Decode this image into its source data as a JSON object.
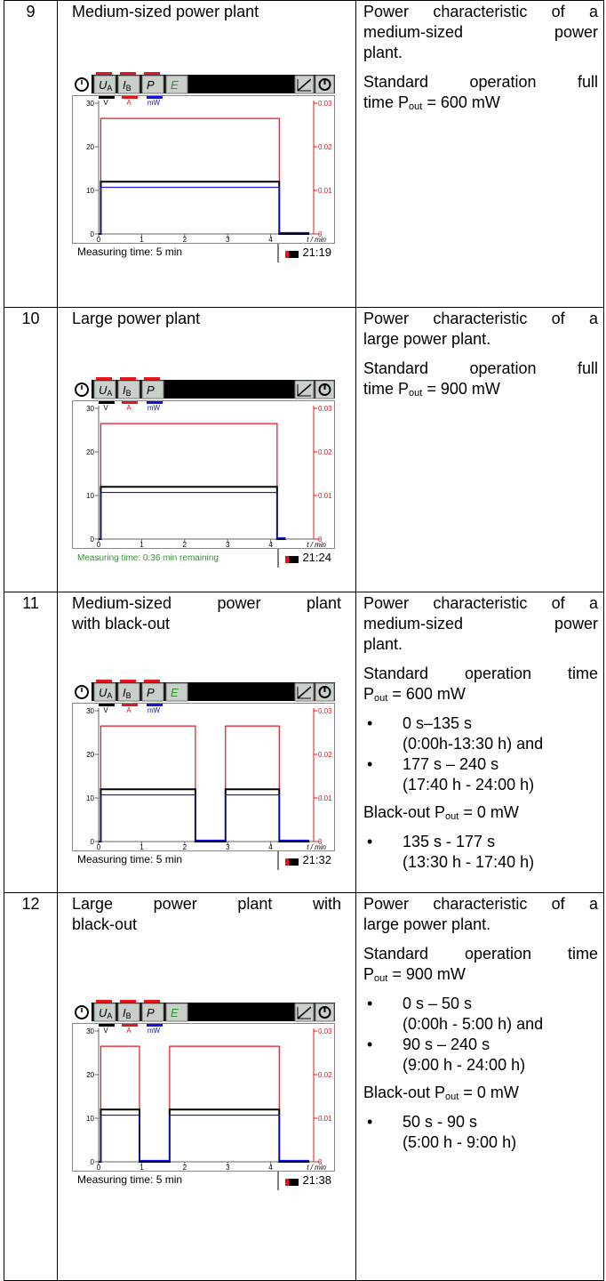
{
  "rows": [
    {
      "number": "9",
      "title": [
        [
          "Medium-sized power plant"
        ]
      ],
      "description": [
        {
          "lines": [
            "Power characteristic of a",
            "medium-sized power",
            "plant."
          ]
        },
        {
          "lines": [
            "Standard operation full",
            [
              "time P",
              {
                "sub": "out"
              },
              " = 600 mW"
            ]
          ]
        }
      ],
      "screen": {
        "channels_shown": 4,
        "status": "Measuring time: 5 min",
        "status_color": "#000000",
        "clock": "21:19",
        "x": [
          0,
          0.05,
          0.05,
          4.2,
          4.2,
          4.9
        ],
        "series": [
          {
            "color": "#e8141c",
            "axis": "y2",
            "values": [
              0,
              0,
              0.0265,
              0.0265,
              0,
              0
            ]
          },
          {
            "color": "#000000",
            "values": [
              0,
              0,
              12,
              12,
              0,
              0
            ]
          },
          {
            "color": "#1010e0",
            "values": [
              0,
              0,
              10.7,
              10.7,
              0.3,
              0.3
            ]
          }
        ]
      }
    },
    {
      "number": "10",
      "title": [
        [
          "Large power plant"
        ]
      ],
      "description": [
        {
          "lines": [
            "Power characteristic of a",
            "large power plant."
          ]
        },
        {
          "lines": [
            "Standard operation full",
            [
              "time P",
              {
                "sub": "out"
              },
              " = 900 mW"
            ]
          ]
        }
      ],
      "screen": {
        "channels_shown": 3,
        "status": "Measuring time: 0:36 min remaining",
        "status_color": "#2a9a2a",
        "clock": "21:24",
        "x": [
          0,
          0.05,
          0.05,
          4.15,
          4.15,
          4.35
        ],
        "series": [
          {
            "color": "#e8141c",
            "axis": "y2",
            "values": [
              0,
              0,
              0.0265,
              0.0265,
              0,
              0
            ]
          },
          {
            "color": "#000000",
            "values": [
              0,
              0,
              12,
              12,
              0,
              0
            ]
          },
          {
            "color": "#1010e0",
            "values": [
              0,
              0,
              10.7,
              10.7,
              0.3,
              0.3
            ]
          }
        ]
      }
    },
    {
      "number": "11",
      "title": [
        [
          "Medium-sized power plant"
        ],
        [
          "with black-out"
        ]
      ],
      "description": [
        {
          "lines": [
            "Power characteristic of a",
            "medium-sized power",
            "plant."
          ]
        },
        {
          "lines": [
            "Standard operation time",
            [
              "P",
              {
                "sub": "out"
              },
              " = 600 mW"
            ]
          ]
        },
        {
          "bullets": [
            [
              "0 s–135 s",
              "(0:00h-13:30 h) and"
            ],
            [
              "177 s – 240 s",
              "(17:40 h - 24:00 h)"
            ]
          ]
        },
        {
          "lines": [
            [
              "Black-out P",
              {
                "sub": "out"
              },
              " = 0 mW"
            ]
          ]
        },
        {
          "bullets": [
            [
              "135 s - 177 s",
              "(13:30 h - 17:40 h)"
            ]
          ]
        }
      ],
      "screen": {
        "channels_shown": 4,
        "status": "Measuring time: 5 min",
        "status_color": "#000000",
        "clock": "21:32",
        "x": [
          0,
          0.05,
          0.05,
          2.25,
          2.25,
          2.95,
          2.95,
          4.2,
          4.2,
          4.9
        ],
        "series": [
          {
            "color": "#e8141c",
            "axis": "y2",
            "values": [
              0,
              0,
              0.0265,
              0.0265,
              0,
              0,
              0.0265,
              0.0265,
              0,
              0
            ]
          },
          {
            "color": "#000000",
            "values": [
              0,
              0,
              12,
              12,
              0,
              0,
              12,
              12,
              0,
              0
            ]
          },
          {
            "color": "#1010e0",
            "values": [
              0,
              0,
              10.7,
              10.7,
              0.3,
              0.3,
              10.7,
              10.7,
              0.3,
              0.3
            ]
          }
        ]
      }
    },
    {
      "number": "12",
      "title": [
        [
          "Large power plant with"
        ],
        [
          "black-out"
        ]
      ],
      "description": [
        {
          "lines": [
            "Power characteristic of a",
            "large power plant."
          ]
        },
        {
          "lines": [
            "Standard operation time",
            [
              "P",
              {
                "sub": "out"
              },
              " = 900 mW"
            ]
          ]
        },
        {
          "bullets": [
            [
              "0 s – 50 s",
              "(0:00h - 5:00 h) and"
            ],
            [
              "90 s – 240 s",
              "(9:00 h - 24:00 h)"
            ]
          ]
        },
        {
          "lines": [
            [
              "Black-out P",
              {
                "sub": "out"
              },
              " = 0 mW"
            ]
          ]
        },
        {
          "bullets": [
            [
              "50 s - 90 s",
              "(5:00 h - 9:00 h)"
            ]
          ]
        }
      ],
      "screen": {
        "channels_shown": 4,
        "status": "Measuring time: 5 min",
        "status_color": "#000000",
        "clock": "21:38",
        "x": [
          0,
          0.05,
          0.05,
          0.95,
          0.95,
          1.65,
          1.65,
          4.2,
          4.2,
          4.9
        ],
        "series": [
          {
            "color": "#e8141c",
            "axis": "y2",
            "values": [
              0,
              0,
              0.0265,
              0.0265,
              0,
              0,
              0.0265,
              0.0265,
              0,
              0
            ]
          },
          {
            "color": "#000000",
            "values": [
              0,
              0,
              12,
              12,
              0,
              0,
              12,
              12,
              0,
              0
            ]
          },
          {
            "color": "#1010e0",
            "values": [
              0,
              0,
              10.7,
              10.7,
              0.3,
              0.3,
              10.7,
              10.7,
              0.3,
              0.3
            ]
          }
        ]
      }
    }
  ],
  "screen_common": {
    "channels": [
      {
        "symbol": "U",
        "sub": "A",
        "color": "#000000"
      },
      {
        "symbol": "I",
        "sub": "B",
        "color": "#000000"
      },
      {
        "symbol": "P",
        "color": "#000000"
      },
      {
        "symbol": "E",
        "color": "#2a9a2a"
      }
    ],
    "units": [
      "V",
      "A",
      "mW"
    ],
    "xlim": [
      0,
      5
    ],
    "ylim": [
      0,
      30
    ],
    "y2lim": [
      0,
      0.03
    ],
    "xticks": [
      0,
      1,
      2,
      3,
      4
    ],
    "yticks": [
      0,
      10,
      20,
      30
    ],
    "y2ticks": [
      0,
      0.01,
      0.02,
      0.03
    ],
    "x_label": "t / min"
  }
}
